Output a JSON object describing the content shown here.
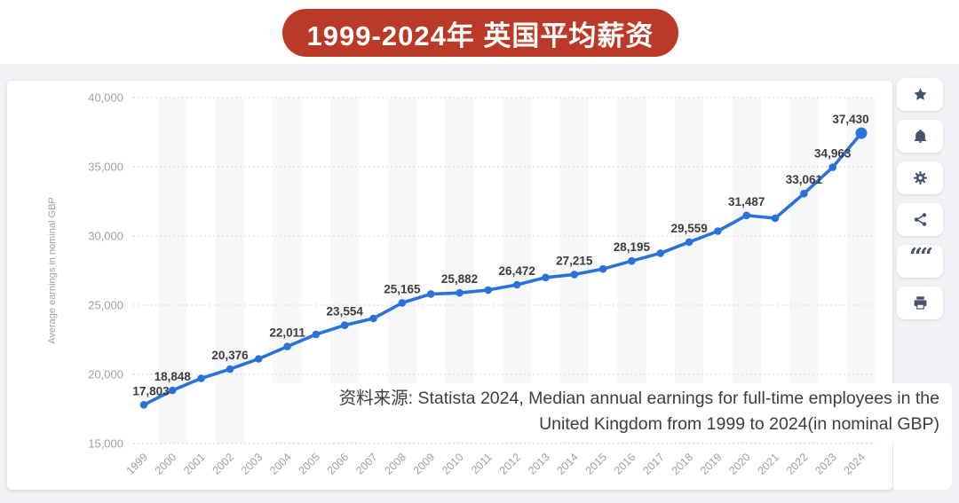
{
  "banner": {
    "title": "1999-2024年 英国平均薪资",
    "bg_color": "#bb3927",
    "text_color": "#ffffff"
  },
  "toolbar": {
    "icon_color": "#44546f",
    "buttons": [
      {
        "name": "favorite",
        "icon": "star-icon"
      },
      {
        "name": "alerts",
        "icon": "bell-icon"
      },
      {
        "name": "settings",
        "icon": "gear-icon"
      },
      {
        "name": "share",
        "icon": "share-icon"
      },
      {
        "name": "cite",
        "icon": "quote-icon"
      },
      {
        "name": "print",
        "icon": "printer-icon"
      }
    ]
  },
  "source": {
    "line1": "资料来源: Statista 2024, Median annual earnings for full-time employees in the",
    "line2": "United Kingdom from 1999 to 2024(in nominal GBP)"
  },
  "chart_data": {
    "type": "line",
    "title": "",
    "xlabel": "",
    "ylabel": "Average earnings in nominal GBP",
    "x": [
      1999,
      2000,
      2001,
      2002,
      2003,
      2004,
      2005,
      2006,
      2007,
      2008,
      2009,
      2010,
      2011,
      2012,
      2013,
      2014,
      2015,
      2016,
      2017,
      2018,
      2019,
      2020,
      2021,
      2022,
      2023,
      2024
    ],
    "values": [
      17803,
      18848,
      19713,
      20376,
      21124,
      22011,
      22888,
      23554,
      24043,
      25165,
      25806,
      25882,
      26095,
      26472,
      27000,
      27215,
      27615,
      28195,
      28759,
      29559,
      30353,
      31487,
      31285,
      33061,
      34963,
      37430
    ],
    "labels": [
      "17,803",
      "18,848",
      null,
      "20,376",
      null,
      "22,011",
      null,
      "23,554",
      null,
      "25,165",
      null,
      "25,882",
      null,
      "26,472",
      null,
      "27,215",
      null,
      "28,195",
      null,
      "29,559",
      null,
      "31,487",
      null,
      "33,061",
      "34,963",
      "37,430"
    ],
    "ylim": [
      15000,
      40000
    ],
    "yticks": [
      15000,
      20000,
      25000,
      30000,
      35000,
      40000
    ],
    "grid": "horizontal-dotted",
    "legend": "none",
    "plot_bands": "alternating-vertical",
    "line_color": "#2b72d8",
    "band_color": "#f6f7f8",
    "grid_color": "#d2d6da",
    "axis_color": "#98a1ab",
    "value_label_color": "#3d3d3d"
  }
}
